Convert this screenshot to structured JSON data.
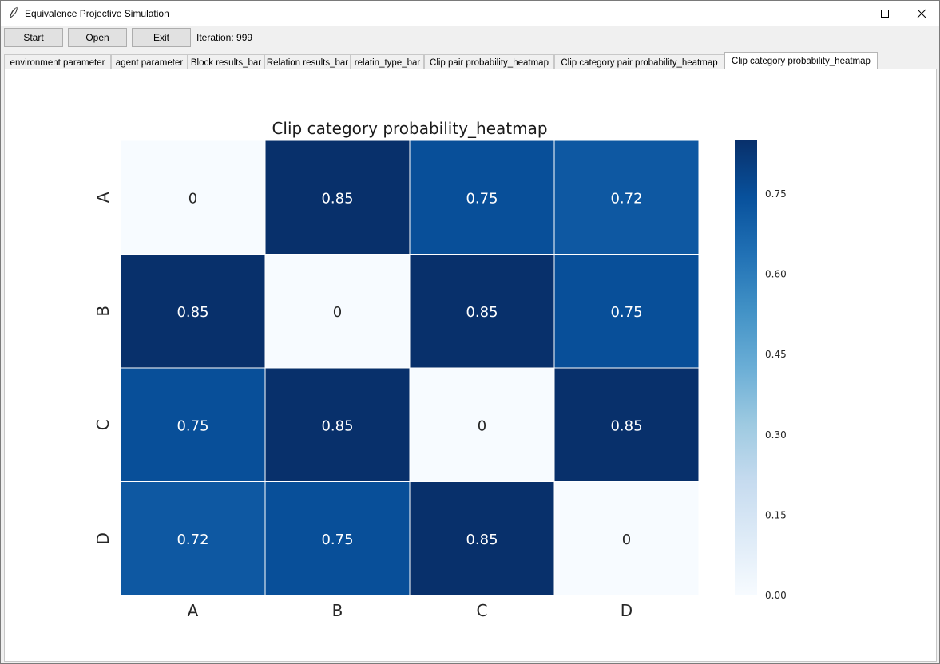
{
  "window": {
    "title": "Equivalence Projective Simulation"
  },
  "toolbar": {
    "start_label": "Start",
    "open_label": "Open",
    "exit_label": "Exit",
    "iteration": "Iteration: 999"
  },
  "tabs": [
    {
      "label": "environment parameter"
    },
    {
      "label": "agent parameter"
    },
    {
      "label": "Block results_bar"
    },
    {
      "label": "Relation results_bar"
    },
    {
      "label": "relatin_type_bar"
    },
    {
      "label": "Clip pair probability_heatmap"
    },
    {
      "label": "Clip category pair probability_heatmap"
    },
    {
      "label": "Clip category probability_heatmap"
    }
  ],
  "chart_data": {
    "type": "heatmap",
    "title": "Clip category probability_heatmap",
    "x_labels": [
      "A",
      "B",
      "C",
      "D"
    ],
    "y_labels": [
      "A",
      "B",
      "C",
      "D"
    ],
    "values": [
      [
        0,
        0.85,
        0.75,
        0.72
      ],
      [
        0.85,
        0,
        0.85,
        0.75
      ],
      [
        0.75,
        0.85,
        0,
        0.85
      ],
      [
        0.72,
        0.75,
        0.85,
        0
      ]
    ],
    "colormap": "Blues",
    "vmin": 0,
    "vmax": 0.85,
    "colorbar_ticks": [
      0.0,
      0.15,
      0.3,
      0.45,
      0.6,
      0.75
    ],
    "colorbar_tick_labels": [
      "0.00",
      "0.15",
      "0.30",
      "0.45",
      "0.60",
      "0.75"
    ]
  }
}
